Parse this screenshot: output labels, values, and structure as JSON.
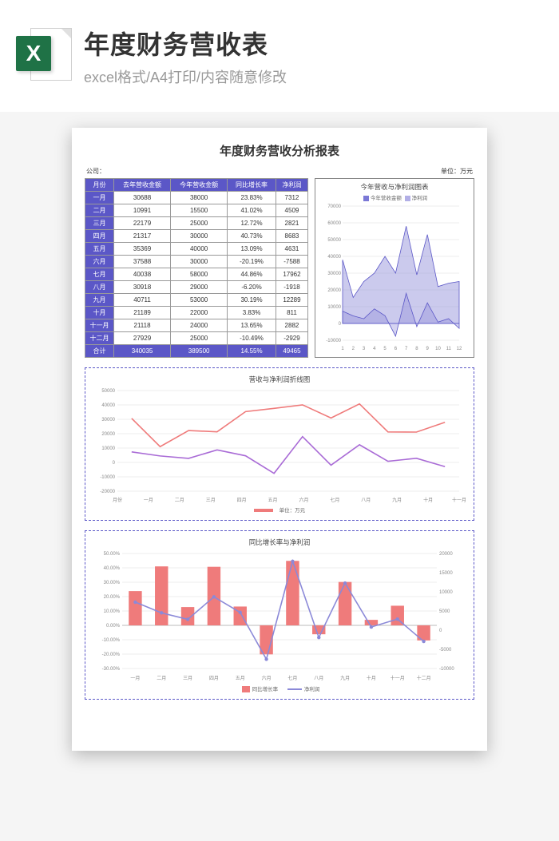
{
  "header": {
    "title": "年度财务营收表",
    "subtitle": "excel格式/A4打印/内容随意修改",
    "icon_letter": "X",
    "icon_bg": "#1f7246"
  },
  "document": {
    "title": "年度财务营收分析报表",
    "company_label": "公司：",
    "unit_label_full": "单位：万元",
    "unit_label_short": "单位 : 万元"
  },
  "table": {
    "columns": [
      "月份",
      "去年营收金额",
      "今年营收金额",
      "同比增长率",
      "净利润"
    ],
    "header_bg": "#5b57c7",
    "header_color": "#ffffff",
    "border_color": "#999999",
    "rows": [
      {
        "month": "一月",
        "last": 30688,
        "this": 38000,
        "growth": "23.83%",
        "profit": 7312
      },
      {
        "month": "二月",
        "last": 10991,
        "this": 15500,
        "growth": "41.02%",
        "profit": 4509
      },
      {
        "month": "三月",
        "last": 22179,
        "this": 25000,
        "growth": "12.72%",
        "profit": 2821
      },
      {
        "month": "四月",
        "last": 21317,
        "this": 30000,
        "growth": "40.73%",
        "profit": 8683
      },
      {
        "month": "五月",
        "last": 35369,
        "this": 40000,
        "growth": "13.09%",
        "profit": 4631
      },
      {
        "month": "六月",
        "last": 37588,
        "this": 30000,
        "growth": "-20.19%",
        "profit": -7588
      },
      {
        "month": "七月",
        "last": 40038,
        "this": 58000,
        "growth": "44.86%",
        "profit": 17962
      },
      {
        "month": "八月",
        "last": 30918,
        "this": 29000,
        "growth": "-6.20%",
        "profit": -1918
      },
      {
        "month": "九月",
        "last": 40711,
        "this": 53000,
        "growth": "30.19%",
        "profit": 12289
      },
      {
        "month": "十月",
        "last": 21189,
        "this": 22000,
        "growth": "3.83%",
        "profit": 811
      },
      {
        "month": "十一月",
        "last": 21118,
        "this": 24000,
        "growth": "13.65%",
        "profit": 2882
      },
      {
        "month": "十二月",
        "last": 27929,
        "this": 25000,
        "growth": "-10.49%",
        "profit": -2929
      }
    ],
    "total": {
      "label": "合计",
      "last": 340035,
      "this": 389500,
      "growth": "14.55%",
      "profit": 49465
    }
  },
  "area_chart": {
    "title": "今年营收与净利润图表",
    "legend": [
      "今年营收金额",
      "净利润"
    ],
    "legend_colors": [
      "#7b78d6",
      "#b2afe6"
    ],
    "x_labels": [
      "1",
      "2",
      "3",
      "4",
      "5",
      "6",
      "7",
      "8",
      "9",
      "10",
      "11",
      "12"
    ],
    "y_ticks": [
      -10000,
      0,
      10000,
      20000,
      30000,
      40000,
      50000,
      60000,
      70000
    ],
    "ylim": [
      -10000,
      70000
    ],
    "series1": [
      38000,
      15500,
      25000,
      30000,
      40000,
      30000,
      58000,
      29000,
      53000,
      22000,
      24000,
      25000
    ],
    "series2": [
      7312,
      4509,
      2821,
      8683,
      4631,
      -7588,
      17962,
      -1918,
      12289,
      811,
      2882,
      -2929
    ],
    "fill_color": "#8b89d8",
    "fill_opacity": 0.45,
    "stroke_color": "#5b57c7",
    "grid_color": "#dddddd",
    "bg": "#ffffff"
  },
  "line_chart": {
    "title": "营收与净利润折线图",
    "legend_label": "单位：万元",
    "x_labels": [
      "月份",
      "一月",
      "二月",
      "三月",
      "四月",
      "五月",
      "六月",
      "七月",
      "八月",
      "九月",
      "十月",
      "十一月"
    ],
    "y_ticks": [
      -20000,
      -10000,
      0,
      10000,
      20000,
      30000,
      40000,
      50000
    ],
    "ylim": [
      -20000,
      50000
    ],
    "series_last": [
      30688,
      10991,
      22179,
      21317,
      35369,
      37588,
      40038,
      30918,
      40711,
      21189,
      21118,
      27929
    ],
    "series_profit": [
      7312,
      4509,
      2821,
      8683,
      4631,
      -7588,
      17962,
      -1918,
      12289,
      811,
      2882,
      -2929
    ],
    "color_last": "#ef7b7b",
    "color_profit": "#a96bd6",
    "grid_color": "#dddddd",
    "stroke_width": 1.6
  },
  "combo_chart": {
    "title": "同比增长率与净利润",
    "legend": [
      "同比增长率",
      "净利润"
    ],
    "x_labels": [
      "一月",
      "二月",
      "三月",
      "四月",
      "五月",
      "六月",
      "七月",
      "八月",
      "九月",
      "十月",
      "十一月",
      "十二月"
    ],
    "left_ticks": [
      "-30.00%",
      "-20.00%",
      "-10.00%",
      "0.00%",
      "10.00%",
      "20.00%",
      "30.00%",
      "40.00%",
      "50.00%"
    ],
    "left_lim": [
      -30,
      50
    ],
    "right_ticks": [
      -10000,
      -5000,
      0,
      5000,
      10000,
      15000,
      20000
    ],
    "right_lim": [
      -10000,
      20000
    ],
    "growth_values": [
      23.83,
      41.02,
      12.72,
      40.73,
      13.09,
      -20.19,
      44.86,
      -6.2,
      30.19,
      3.83,
      13.65,
      -10.49
    ],
    "profit_values": [
      7312,
      4509,
      2821,
      8683,
      4631,
      -7588,
      17962,
      -1918,
      12289,
      811,
      2882,
      -2929
    ],
    "bar_color": "#ef7b7b",
    "line_color": "#8b89d8",
    "grid_color": "#dddddd",
    "bar_width": 0.5
  },
  "colors": {
    "panel_border": "#5b57c7",
    "page_bg": "#ffffff",
    "body_bg": "#f5f5f5"
  }
}
